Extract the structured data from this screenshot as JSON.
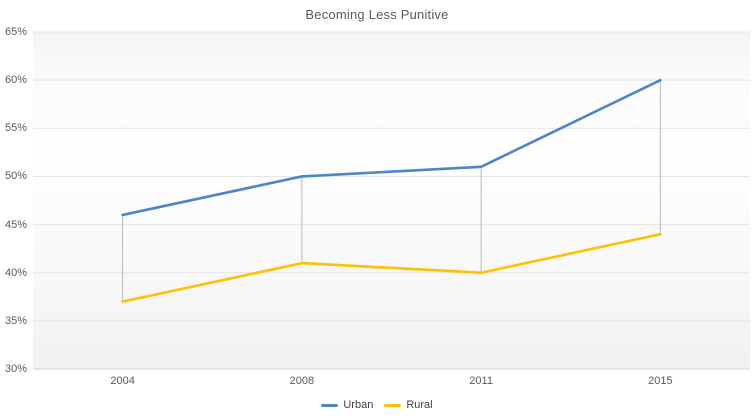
{
  "chart_data": {
    "type": "line",
    "title": "Becoming Less Punitive",
    "categories": [
      "2004",
      "2008",
      "2011",
      "2015"
    ],
    "series": [
      {
        "name": "Urban",
        "color": "#4A86C8",
        "values": [
          46,
          50,
          51,
          60
        ]
      },
      {
        "name": "Rural",
        "color": "#FFC000",
        "values": [
          37,
          41,
          40,
          44
        ]
      }
    ],
    "ylim": [
      30,
      65
    ],
    "y_tick_step": 5,
    "y_tick_labels_top_to_bottom": [
      "65%",
      "60%",
      "55%",
      "50%",
      "45%",
      "40%",
      "35%",
      "30%"
    ],
    "xlabel": "",
    "ylabel": "",
    "grid": true,
    "drop_lines": true,
    "legend_position": "bottom-center",
    "colors": {
      "gridline": "#e3e3e3",
      "axis_line": "#d4d4d4",
      "drop_line": "#b8b8b8",
      "text": "#595959",
      "legend_text": "#404040"
    }
  }
}
